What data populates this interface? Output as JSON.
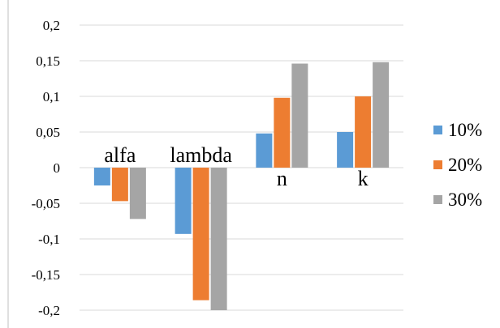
{
  "chart_data": {
    "type": "bar",
    "categories": [
      "alfa",
      "lambda",
      "n",
      "k"
    ],
    "series": [
      {
        "name": "10%",
        "color": "#5b9bd5",
        "values": [
          -0.025,
          -0.093,
          0.048,
          0.05
        ]
      },
      {
        "name": "20%",
        "color": "#ed7d31",
        "values": [
          -0.047,
          -0.186,
          0.098,
          0.1
        ]
      },
      {
        "name": "30%",
        "color": "#a5a5a5",
        "values": [
          -0.072,
          -0.2,
          0.146,
          0.148
        ]
      }
    ],
    "yticks": [
      "0,2",
      "0,15",
      "0,1",
      "0,05",
      "0",
      "-0,05",
      "-0,1",
      "-0,15",
      "-0,2"
    ],
    "ytick_values": [
      0.2,
      0.15,
      0.1,
      0.05,
      0,
      -0.05,
      -0.1,
      -0.15,
      -0.2
    ],
    "ylim": [
      -0.2,
      0.2
    ],
    "grid": true,
    "legend": "right",
    "category_label_position": "alfa and lambda above the zero line, n and k below it"
  }
}
